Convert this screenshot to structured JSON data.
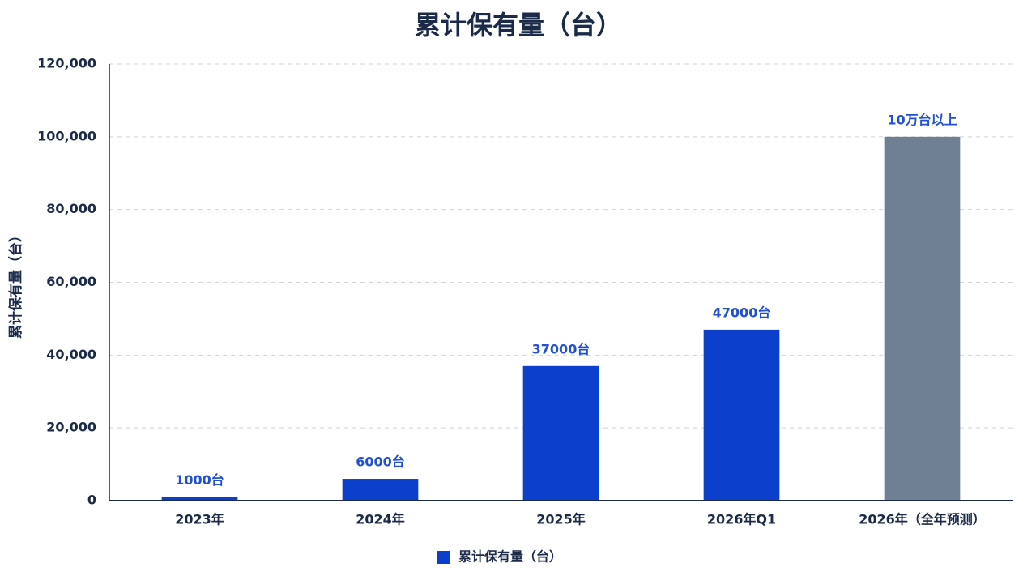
{
  "chart_data": {
    "type": "bar",
    "title": "累计保有量（台）",
    "y_label": "累计保有量（台）",
    "categories": [
      "2023年",
      "2024年",
      "2025年",
      "2026年Q1",
      "2026年（全年预测）"
    ],
    "series": [
      {
        "name": "累计保有量（台）",
        "color": "#0b3fcc",
        "colors": [
          "#0b3fcc",
          "#0b3fcc",
          "#0b3fcc",
          "#0b3fcc",
          "#6f7f94"
        ],
        "values": [
          1000,
          6000,
          37000,
          47000,
          100000
        ],
        "value_labels": [
          "1000台",
          "6000台",
          "37000台",
          "47000台",
          "10万台以上"
        ]
      }
    ],
    "ylim": [
      0,
      120000
    ],
    "yticks": [
      0,
      {
        "value": 20000,
        "label": "20,000"
      },
      {
        "value": 40000,
        "label": "40,000"
      },
      {
        "value": 60000,
        "label": "60,000"
      },
      {
        "value": 80000,
        "label": "80,000"
      },
      {
        "value": 100000,
        "label": "100,000"
      },
      {
        "value": 120000,
        "label": "120,000"
      }
    ],
    "grid": true,
    "legend": "bottom"
  }
}
